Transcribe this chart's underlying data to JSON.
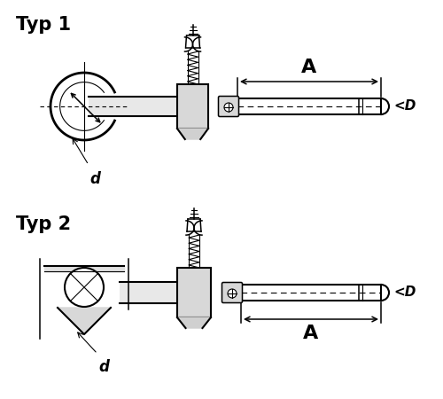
{
  "title1": "Typ 1",
  "title2": "Typ 2",
  "label_A": "A",
  "label_D": "<D",
  "label_d": "d",
  "bg_color": "#ffffff",
  "line_color": "#000000",
  "lw_main": 1.5,
  "lw_thin": 0.8,
  "lw_med": 1.1,
  "fig_w": 5.0,
  "fig_h": 4.5
}
